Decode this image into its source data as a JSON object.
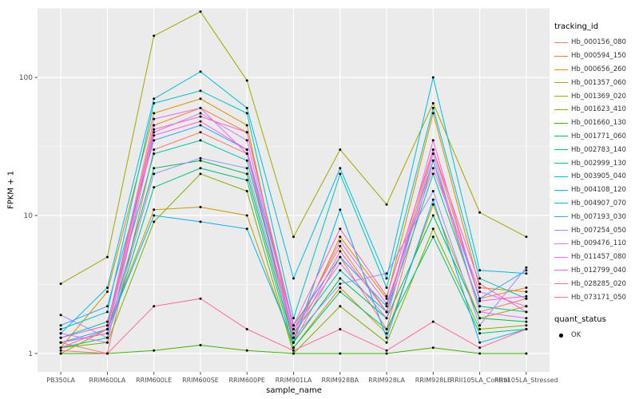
{
  "figure": {
    "panel_bg": "#EBEBEB",
    "grid_major": "#FFFFFF",
    "grid_minor": "#F7F7F7",
    "tick_color": "#333333",
    "axis_text_color": "#4D4D4D",
    "point_color": "#000000"
  },
  "axes": {
    "x_title": "sample_name",
    "y_title": "FPKM + 1",
    "y_ticks": [
      1,
      10,
      100
    ],
    "y_tick_labels": [
      "1",
      "10",
      "100"
    ]
  },
  "legend": {
    "tracking_title": "tracking_id",
    "quant_title": "quant_status",
    "quant_items": [
      {
        "label": "OK"
      }
    ]
  },
  "chart_data": {
    "type": "line",
    "y_scale": "log10",
    "ylim": [
      1,
      300
    ],
    "grid": true,
    "legend_position": "right",
    "xlabel": "sample_name",
    "ylabel": "FPKM + 1",
    "x_categories": [
      "PB350LA",
      "RRIM600LA",
      "RRIM600LE",
      "RRIM600SE",
      "RRIM600PE",
      "RRIM901LA",
      "RRIM928BA",
      "RRIM928LA",
      "RRIM928LE",
      "RRII105LA_Control",
      "RRII105LA_Stressed"
    ],
    "series": [
      {
        "name": "Hb_000156_080",
        "color": "#F8766D",
        "values": [
          1.2,
          1.0,
          30,
          40,
          28,
          1.2,
          5.0,
          1.5,
          25,
          2.0,
          2.5
        ]
      },
      {
        "name": "Hb_000594_150",
        "color": "#EA8331",
        "values": [
          1.3,
          1.6,
          45,
          60,
          40,
          1.5,
          6.0,
          2.0,
          30,
          2.5,
          3.0
        ]
      },
      {
        "name": "Hb_000656_260",
        "color": "#D89000",
        "values": [
          1.1,
          2.8,
          55,
          70,
          45,
          1.3,
          7.0,
          2.5,
          55,
          3.0,
          2.8
        ]
      },
      {
        "name": "Hb_001357_060",
        "color": "#C09B00",
        "values": [
          1.0,
          1.5,
          11,
          11.5,
          10,
          1.1,
          3.0,
          1.4,
          12,
          1.8,
          2.2
        ]
      },
      {
        "name": "Hb_001369_020",
        "color": "#A3A500",
        "values": [
          3.2,
          5.0,
          200,
          300,
          95,
          7.0,
          30,
          12,
          65,
          10.5,
          7.0
        ]
      },
      {
        "name": "Hb_001623_410",
        "color": "#7CAE00",
        "values": [
          1.1,
          1.2,
          9.0,
          20,
          15,
          1.0,
          2.2,
          1.2,
          8.0,
          1.5,
          1.6
        ]
      },
      {
        "name": "Hb_001660_130",
        "color": "#39B600",
        "values": [
          1.0,
          1.0,
          1.05,
          1.15,
          1.05,
          1.0,
          1.0,
          1.0,
          1.1,
          1.0,
          1.0
        ]
      },
      {
        "name": "Hb_001771_060",
        "color": "#00BB4E",
        "values": [
          1.2,
          1.4,
          22,
          25,
          20,
          1.2,
          3.5,
          1.8,
          10,
          1.8,
          1.7
        ]
      },
      {
        "name": "Hb_002783_140",
        "color": "#00BF7D",
        "values": [
          1.1,
          1.3,
          16,
          22,
          18,
          1.1,
          2.8,
          1.5,
          7.0,
          1.4,
          1.5
        ]
      },
      {
        "name": "Hb_002999_130",
        "color": "#00C1A3",
        "values": [
          1.3,
          1.7,
          28,
          35,
          25,
          1.4,
          4.0,
          2.0,
          20,
          2.2,
          2.0
        ]
      },
      {
        "name": "Hb_003905_040",
        "color": "#00BFC4",
        "values": [
          1.5,
          2.0,
          65,
          80,
          55,
          1.8,
          20,
          3.0,
          60,
          3.5,
          2.5
        ]
      },
      {
        "name": "Hb_004108_120",
        "color": "#00BAE0",
        "values": [
          1.4,
          3.0,
          70,
          110,
          60,
          3.5,
          22,
          3.5,
          100,
          4.0,
          3.8
        ]
      },
      {
        "name": "Hb_004907_070",
        "color": "#00B0F6",
        "values": [
          1.2,
          1.5,
          10,
          9.0,
          8.0,
          1.2,
          11,
          1.3,
          13,
          1.2,
          1.5
        ]
      },
      {
        "name": "Hb_007193_030",
        "color": "#35A2FF",
        "values": [
          1.6,
          2.2,
          35,
          45,
          30,
          1.6,
          5.0,
          2.2,
          25,
          2.5,
          4.0
        ]
      },
      {
        "name": "Hb_007254_050",
        "color": "#9590FF",
        "values": [
          1.9,
          1.3,
          20,
          26,
          22,
          1.3,
          3.2,
          3.8,
          15,
          1.6,
          4.2
        ]
      },
      {
        "name": "Hb_009476_110",
        "color": "#C77CFF",
        "values": [
          1.4,
          1.2,
          40,
          55,
          35,
          1.5,
          4.5,
          1.8,
          28,
          2.0,
          1.8
        ]
      },
      {
        "name": "Hb_011457_080",
        "color": "#E76BF3",
        "values": [
          1.3,
          1.6,
          50,
          60,
          28,
          1.4,
          6.5,
          2.3,
          22,
          2.8,
          2.2
        ]
      },
      {
        "name": "Hb_012799_040",
        "color": "#FA62DB",
        "values": [
          1.2,
          1.4,
          38,
          48,
          30,
          1.3,
          5.5,
          2.0,
          35,
          2.4,
          2.6
        ]
      },
      {
        "name": "Hb_028285_020",
        "color": "#FF62BC",
        "values": [
          1.1,
          1.5,
          42,
          52,
          40,
          1.6,
          8.0,
          2.6,
          30,
          3.2,
          2.0
        ]
      },
      {
        "name": "Hb_073171_050",
        "color": "#FF6A98",
        "values": [
          1.05,
          1.0,
          2.2,
          2.5,
          1.5,
          1.05,
          1.5,
          1.05,
          1.7,
          1.1,
          1.5
        ]
      }
    ]
  }
}
